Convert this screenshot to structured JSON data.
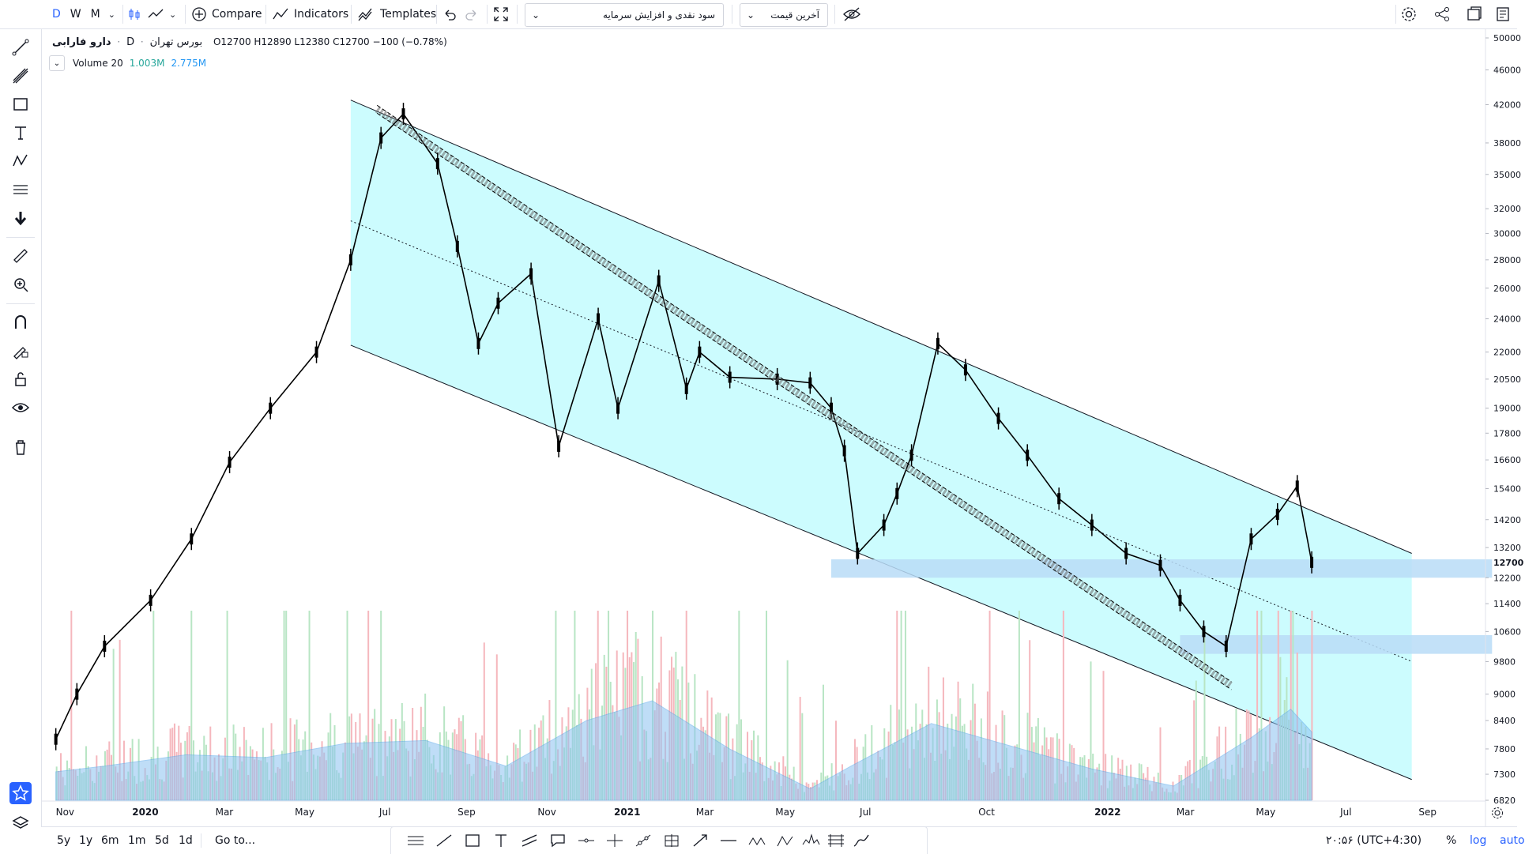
{
  "toolbar": {
    "timeframes": [
      "D",
      "W",
      "M"
    ],
    "compare_label": "Compare",
    "indicators_label": "Indicators",
    "templates_label": "Templates",
    "dropdown1": "سود نقدی و افزایش سرمایه",
    "dropdown2": "آخرین قیمت"
  },
  "legend": {
    "symbol": "دارو فارابی",
    "separator": "·",
    "interval": "D",
    "exchange": "بورس تهران",
    "ohlc": "O12700  H12890  L12380  C12700  −100 (−0.78%)",
    "volume_label": "Volume 20",
    "volume_value1": "1.003M",
    "volume_value2": "2.775M"
  },
  "bottom": {
    "ranges": [
      "5y",
      "1y",
      "6m",
      "1m",
      "5d",
      "1d"
    ],
    "goto": "Go to...",
    "clock": "۲۰:۵۶ (UTC+4:30)",
    "pct": "%",
    "log": "log",
    "auto": "auto"
  },
  "colors": {
    "accent": "#2962ff",
    "channel_fill": "#ccfcfe",
    "zone": "#b9dcf7",
    "up_volume": "#b8e5c4",
    "down_volume": "#f5b7bd",
    "volume_ma": "#8cc3f2"
  },
  "chart_data": {
    "type": "line",
    "price_scale": "log",
    "y_ticks": [
      50000,
      46000,
      42000,
      38000,
      35000,
      32000,
      30000,
      28000,
      26000,
      24000,
      22000,
      20500,
      19000,
      17800,
      16600,
      15400,
      14200,
      13200,
      12200,
      11400,
      10600,
      9800,
      9000,
      8400,
      7800,
      7300,
      6820
    ],
    "last_price_label": "12700",
    "x_ticks": [
      "Nov",
      "2020",
      "Mar",
      "May",
      "Jul",
      "Sep",
      "Nov",
      "2021",
      "Mar",
      "May",
      "Jul",
      "Oct",
      "2022",
      "Mar",
      "May",
      "Jul",
      "Sep"
    ],
    "price_series": {
      "x": [
        "2019-10-25",
        "2019-11-10",
        "2019-12-01",
        "2020-01-05",
        "2020-02-05",
        "2020-03-05",
        "2020-04-05",
        "2020-05-10",
        "2020-06-05",
        "2020-06-28",
        "2020-07-15",
        "2020-08-10",
        "2020-08-25",
        "2020-09-10",
        "2020-09-25",
        "2020-10-20",
        "2020-11-10",
        "2020-12-10",
        "2020-12-25",
        "2021-01-25",
        "2021-02-15",
        "2021-02-25",
        "2021-03-20",
        "2021-04-25",
        "2021-05-20",
        "2021-06-05",
        "2021-06-15",
        "2021-06-25",
        "2021-07-15",
        "2021-07-25",
        "2021-08-05",
        "2021-08-25",
        "2021-09-15",
        "2021-10-10",
        "2021-11-01",
        "2021-11-25",
        "2021-12-20",
        "2022-01-15",
        "2022-02-10",
        "2022-02-25",
        "2022-03-15",
        "2022-04-01",
        "2022-04-20",
        "2022-05-10",
        "2022-05-25",
        "2022-06-05"
      ],
      "close": [
        8000,
        9000,
        10200,
        11500,
        13500,
        16500,
        19000,
        22000,
        28000,
        38500,
        41000,
        36000,
        29000,
        22500,
        25000,
        27000,
        17200,
        24000,
        19000,
        26500,
        20000,
        22000,
        20600,
        20500,
        20300,
        19000,
        17000,
        13000,
        14000,
        15200,
        16800,
        22500,
        21000,
        18500,
        16800,
        15000,
        14000,
        13000,
        12600,
        11500,
        10600,
        10200,
        13500,
        14400,
        15500,
        12700
      ]
    },
    "volume_series": {
      "x": [
        "2019-10-25",
        "2019-12-01",
        "2020-02-01",
        "2020-04-01",
        "2020-06-01",
        "2020-08-01",
        "2020-10-01",
        "2020-12-01",
        "2021-01-20",
        "2021-03-20",
        "2021-05-20",
        "2021-06-20",
        "2021-08-20",
        "2021-10-20",
        "2021-12-20",
        "2022-02-20",
        "2022-04-20",
        "2022-05-20",
        "2022-06-05"
      ],
      "volume_ma": [
        1.0,
        1.2,
        1.6,
        1.5,
        2.0,
        2.1,
        1.2,
        2.8,
        3.5,
        1.8,
        0.4,
        1.2,
        2.7,
        1.9,
        1.1,
        0.5,
        2.2,
        3.2,
        2.4
      ]
    },
    "channel": {
      "upper": [
        [
          "2020-06-05",
          42500
        ],
        [
          "2022-08-20",
          13000
        ]
      ],
      "lower": [
        [
          "2020-06-05",
          22400
        ],
        [
          "2022-08-20",
          7200
        ]
      ],
      "median": [
        [
          "2020-06-05",
          31000
        ],
        [
          "2022-08-20",
          9800
        ]
      ]
    },
    "zones": [
      {
        "from": "2021-06-05",
        "to": "2022-10-20",
        "y_low": 12200,
        "y_high": 12800
      },
      {
        "from": "2022-02-25",
        "to": "2022-10-20",
        "y_low": 10000,
        "y_high": 10500
      }
    ]
  }
}
